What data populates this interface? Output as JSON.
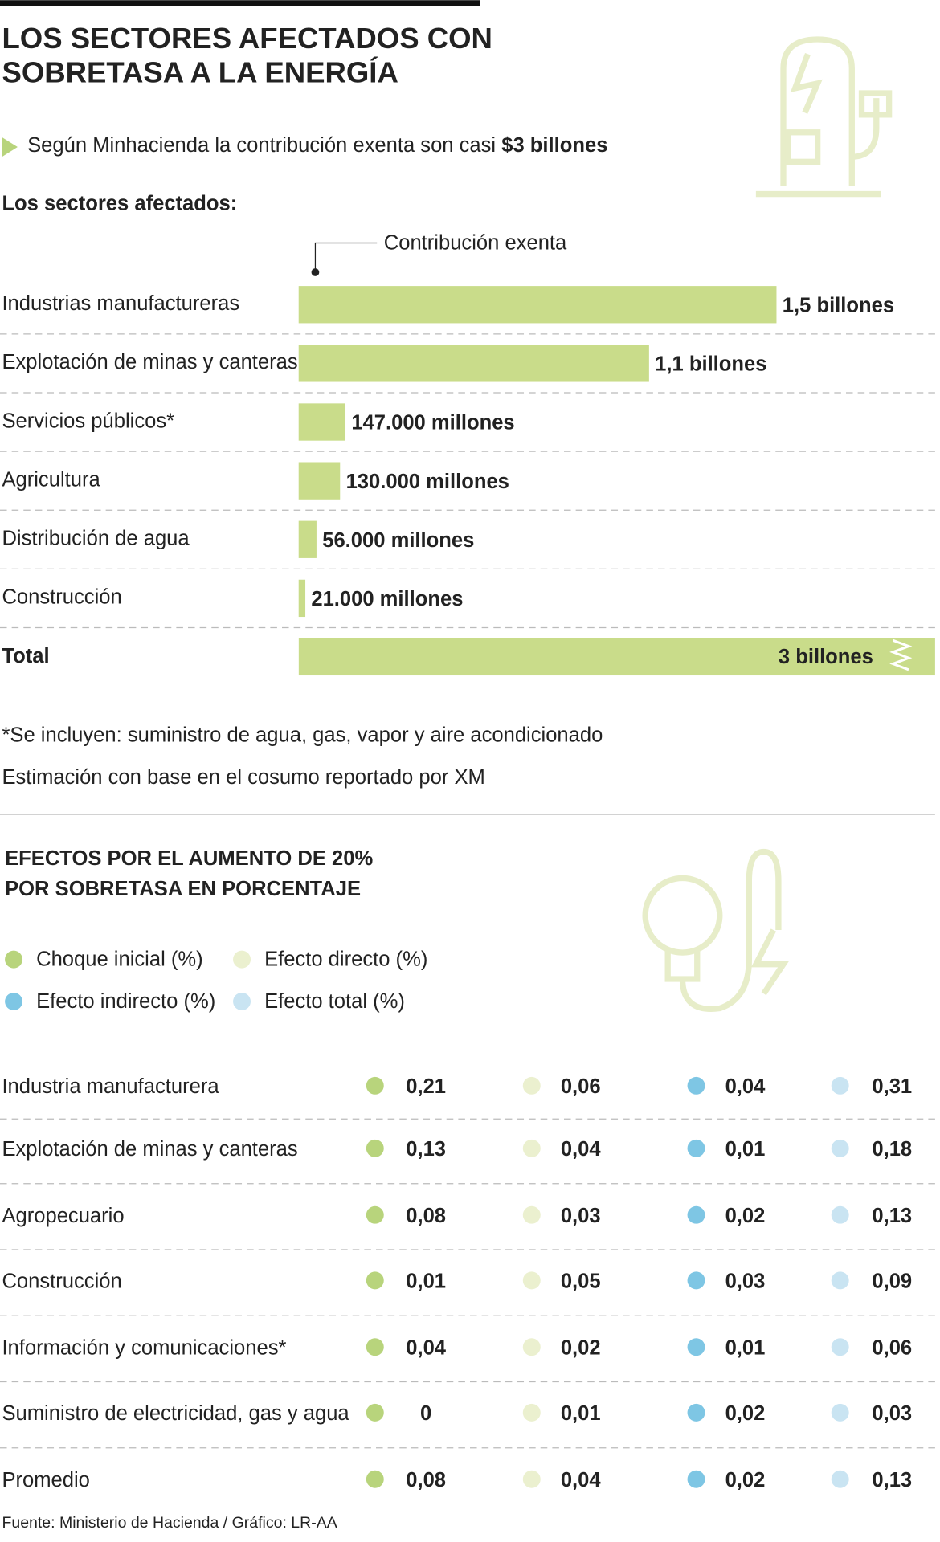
{
  "chart_data": {
    "type": "bar",
    "orientation": "horizontal",
    "title": [
      "LOS SECTORES AFECTADOS CON",
      "SOBRETASA A LA ENERGÍA"
    ],
    "subtitle": "Según Minhacienda la contribución exenta son casi",
    "subtitle_highlight": "$3 billones",
    "section_label": "Los sectores afectados:",
    "series_label": "Contribución exenta",
    "categories": [
      "Industrias manufactureras",
      "Explotación de minas y canteras",
      "Servicios públicos*",
      "Agricultura",
      "Distribución de agua",
      "Construcción"
    ],
    "values": [
      1500000,
      1100000,
      147000,
      130000,
      56000,
      21000
    ],
    "value_labels": [
      "1,5 billones",
      "1,1 billones",
      "147.000 millones",
      "130.000 millones",
      "56.000 millones",
      "21.000 millones"
    ],
    "color": "#c9dc8a",
    "xlim": [
      0,
      1500000
    ],
    "total": {
      "label": "Total",
      "value": 3000000,
      "value_label": "3 billones"
    },
    "notes": [
      "*Se incluyen: suministro de agua, gas, vapor y aire acondicionado",
      "Estimación con base en el cosumo reportado por XM"
    ]
  },
  "table": {
    "title": [
      "EFECTOS POR EL AUMENTO DE 20%",
      "POR SOBRETASA EN PORCENTAJE"
    ],
    "columns": [
      {
        "name": "Choque inicial (%)",
        "color": "#b8d47c"
      },
      {
        "name": "Efecto directo (%)",
        "color": "#ebf0cf"
      },
      {
        "name": "Efecto indirecto (%)",
        "color": "#7ec6e4"
      },
      {
        "name": "Efecto total (%)",
        "color": "#c9e4f2"
      }
    ],
    "rows": [
      [
        "Industria manufacturera",
        "0,21",
        "0,06",
        "0,04",
        "0,31"
      ],
      [
        "Explotación de minas y canteras",
        "0,13",
        "0,04",
        "0,01",
        "0,18"
      ],
      [
        "Agropecuario",
        "0,08",
        "0,03",
        "0,02",
        "0,13"
      ],
      [
        "Construcción",
        "0,01",
        "0,05",
        "0,03",
        "0,09"
      ],
      [
        "Información y comunicaciones*",
        "0,04",
        "0,02",
        "0,01",
        "0,06"
      ],
      [
        "Suministro de electricidad, gas y agua",
        "0",
        "0,01",
        "0,02",
        "0,03"
      ],
      [
        "Promedio",
        "0,08",
        "0,04",
        "0,02",
        "0,13"
      ]
    ]
  },
  "source": "Fuente: Ministerio de Hacienda / Gráfico: LR-AA"
}
